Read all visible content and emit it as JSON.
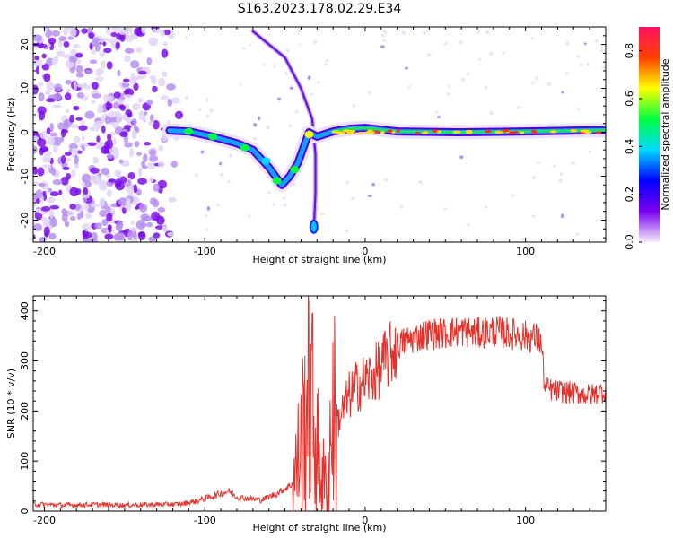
{
  "title": "S163.2023.178.02.29.E34",
  "chart_data": [
    {
      "type": "heatmap",
      "xlabel": "Height of straight line (km)",
      "ylabel": "Frequency (Hz)",
      "xlim": [
        -207,
        150
      ],
      "ylim": [
        -25,
        24
      ],
      "xticks": [
        -200,
        -100,
        0,
        100
      ],
      "yticks": [
        -20,
        -10,
        0,
        10,
        20
      ],
      "colorbar": {
        "label": "Normalized spectral amplitude",
        "range": [
          0.0,
          0.9
        ],
        "ticks": [
          0.0,
          0.2,
          0.4,
          0.6,
          0.8
        ],
        "colors": [
          "#f4eefc",
          "#7b00f0",
          "#0000ff",
          "#00d8ff",
          "#00ff40",
          "#ffff00",
          "#ff4000",
          "#ff1060"
        ]
      },
      "features": [
        {
          "name": "noise-region",
          "x_range": [
            -207,
            -112
          ],
          "y_range": [
            -25,
            24
          ],
          "amplitude": 0.15
        },
        {
          "name": "main-trace",
          "points": [
            [
              -122,
              0.4
            ],
            [
              -110,
              0.2
            ],
            [
              -95,
              -1.0
            ],
            [
              -80,
              -2.5
            ],
            [
              -70,
              -4
            ],
            [
              -60,
              -8
            ],
            [
              -52,
              -12
            ],
            [
              -47,
              -10
            ],
            [
              -42,
              -7
            ],
            [
              -38,
              -3
            ],
            [
              -35,
              0
            ],
            [
              -30,
              -1.0
            ],
            [
              -20,
              0.2
            ],
            [
              -10,
              0.8
            ],
            [
              0,
              1.0
            ],
            [
              20,
              0.2
            ],
            [
              60,
              0.0
            ],
            [
              100,
              0.2
            ],
            [
              150,
              0.5
            ]
          ]
        },
        {
          "name": "hyperbolic-arc",
          "points": [
            [
              -70,
              23
            ],
            [
              -50,
              17
            ],
            [
              -40,
              10
            ],
            [
              -33,
              3
            ],
            [
              -31,
              -5
            ],
            [
              -31,
              -14
            ],
            [
              -32,
              -22
            ]
          ]
        }
      ]
    },
    {
      "type": "line",
      "xlabel": "Height of straight line (km)",
      "ylabel": "SNR (10 * v/v)",
      "xlim": [
        -207,
        150
      ],
      "ylim": [
        0,
        430
      ],
      "xticks": [
        -200,
        -100,
        0,
        100
      ],
      "yticks": [
        0,
        100,
        200,
        300,
        400
      ],
      "color": "#e8302a",
      "series": [
        {
          "name": "SNR",
          "x": [
            -207,
            -190,
            -170,
            -150,
            -130,
            -115,
            -105,
            -95,
            -85,
            -80,
            -75,
            -65,
            -55,
            -45,
            -40,
            -36,
            -33,
            -30,
            -28,
            -26,
            -24,
            -22,
            -20,
            -17,
            -14,
            -10,
            -5,
            0,
            5,
            10,
            15,
            20,
            25,
            30,
            40,
            50,
            60,
            70,
            80,
            90,
            100,
            108,
            110,
            112,
            120,
            130,
            140,
            150
          ],
          "y": [
            14,
            12,
            13,
            12,
            13,
            14,
            20,
            30,
            40,
            28,
            26,
            22,
            35,
            55,
            130,
            240,
            210,
            120,
            100,
            60,
            40,
            130,
            200,
            180,
            200,
            230,
            250,
            260,
            270,
            290,
            310,
            330,
            340,
            345,
            355,
            355,
            360,
            355,
            360,
            355,
            350,
            345,
            330,
            245,
            240,
            236,
            232,
            240
          ]
        }
      ]
    }
  ]
}
